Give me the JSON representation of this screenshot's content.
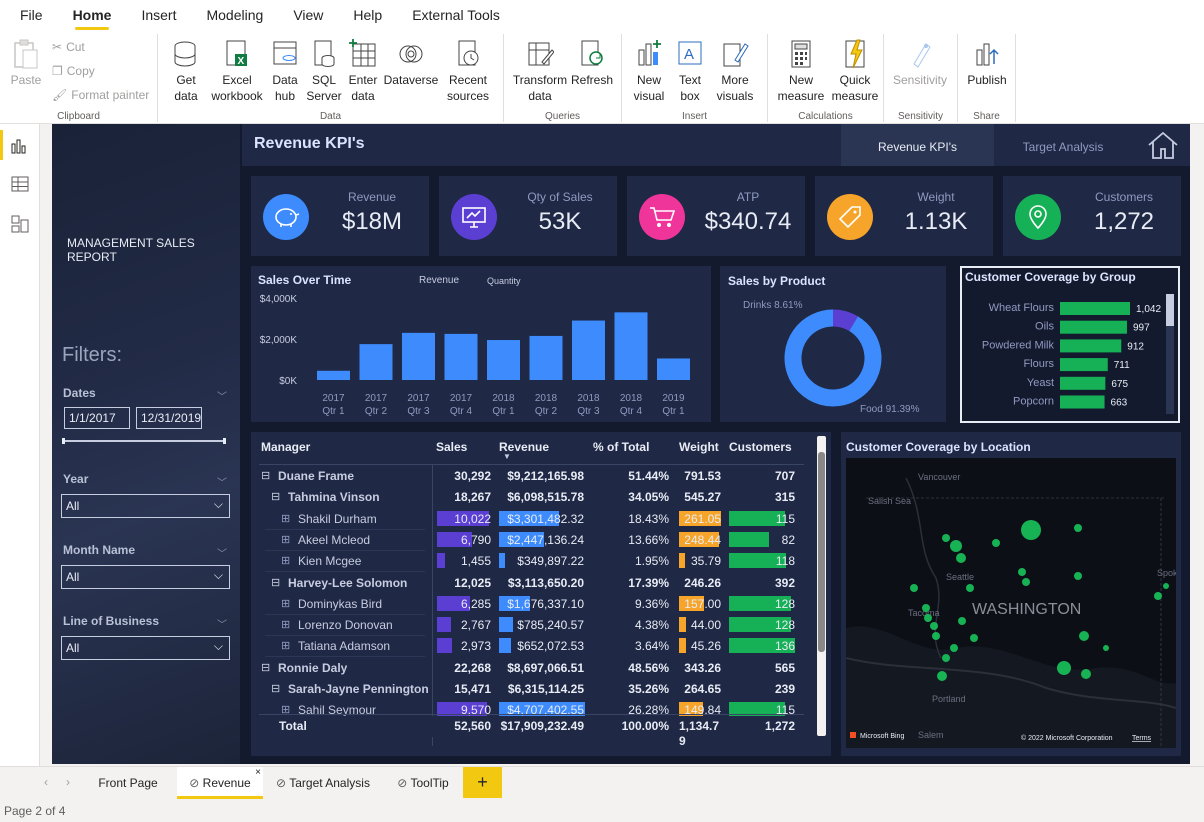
{
  "menu": {
    "items": [
      "File",
      "Home",
      "Insert",
      "Modeling",
      "View",
      "Help",
      "External Tools"
    ],
    "active": "Home"
  },
  "ribbon": {
    "clipboard": {
      "paste": "Paste",
      "cut": "Cut",
      "copy": "Copy",
      "format_painter": "Format painter",
      "label": "Clipboard"
    },
    "data": {
      "get_data": "Get data",
      "excel": "Excel workbook",
      "datahub": "Data hub",
      "sql": "SQL Server",
      "enter": "Enter data",
      "dataverse": "Dataverse",
      "recent": "Recent sources",
      "label": "Data"
    },
    "queries": {
      "transform": "Transform data",
      "refresh": "Refresh",
      "label": "Queries"
    },
    "insert": {
      "new_visual": "New visual",
      "text_box": "Text box",
      "more_visuals": "More visuals",
      "label": "Insert"
    },
    "calc": {
      "new_measure": "New measure",
      "quick_measure": "Quick measure",
      "label": "Calculations"
    },
    "sensitivity": {
      "btn": "Sensitivity",
      "label": "Sensitivity"
    },
    "share": {
      "publish": "Publish",
      "label": "Share"
    }
  },
  "report": {
    "title": "MANAGEMENT SALES REPORT",
    "heading": "Revenue KPI's",
    "nav": {
      "tab1": "Revenue KPI's",
      "tab2": "Target Analysis"
    },
    "filters": {
      "title": "Filters:",
      "dates_label": "Dates",
      "date_from": "1/1/2017",
      "date_to": "12/31/2019",
      "year_label": "Year",
      "year_value": "All",
      "month_label": "Month Name",
      "month_value": "All",
      "lob_label": "Line of Business",
      "lob_value": "All"
    },
    "kpis": [
      {
        "label": "Revenue",
        "value": "$18M",
        "color": "#3d8bfd",
        "icon": "piggy-bank-icon"
      },
      {
        "label": "Qty of Sales",
        "value": "53K",
        "color": "#5b3fd3",
        "icon": "presentation-chart-icon"
      },
      {
        "label": "ATP",
        "value": "$340.74",
        "color": "#f0359a",
        "icon": "shopping-cart-icon"
      },
      {
        "label": "Weight",
        "value": "1.13K",
        "color": "#f7a52a",
        "icon": "tag-icon"
      },
      {
        "label": "Customers",
        "value": "1,272",
        "color": "#16b156",
        "icon": "location-pin-icon"
      }
    ]
  },
  "chart_data": [
    {
      "type": "bar",
      "title": "Sales Over Time",
      "legend": [
        "Revenue",
        "Quantity"
      ],
      "categories": [
        "2017 Qtr 1",
        "2017 Qtr 2",
        "2017 Qtr 3",
        "2017 Qtr 4",
        "2018 Qtr 1",
        "2018 Qtr 2",
        "2018 Qtr 3",
        "2018 Qtr 4",
        "2019 Qtr 1"
      ],
      "series": [
        {
          "name": "Revenue",
          "values": [
            450,
            1750,
            2300,
            2250,
            1950,
            2150,
            2900,
            3300,
            1050
          ]
        }
      ],
      "yticks": [
        "$4,000K",
        "$2,000K",
        "$0K"
      ],
      "ylim": [
        0,
        4000
      ]
    },
    {
      "type": "pie",
      "title": "Sales by Product",
      "labels": [
        "Drinks",
        "Food"
      ],
      "values": [
        8.61,
        91.39
      ],
      "display": [
        "Drinks 8.61%",
        "Food 91.39%"
      ],
      "colors": [
        "#5b3fd3",
        "#3d8bfd"
      ]
    },
    {
      "type": "bar",
      "title": "Customer Coverage by Group",
      "categories": [
        "Wheat Flours",
        "Oils",
        "Powdered Milk",
        "Flours",
        "Yeast",
        "Popcorn"
      ],
      "values": [
        1042,
        997,
        912,
        711,
        675,
        663
      ],
      "display": [
        "1,042",
        "997",
        "912",
        "711",
        "675",
        "663"
      ]
    }
  ],
  "table": {
    "headers": [
      "Manager",
      "Sales",
      "Revenue",
      "% of Total",
      "Weight",
      "Customers"
    ],
    "rows": [
      {
        "level": 0,
        "name": "Duane Frame",
        "sales": "30,292",
        "revenue": "$9,212,165.98",
        "pct": "51.44%",
        "weight": "791.53",
        "cust": "707"
      },
      {
        "level": 1,
        "name": "Tahmina Vinson",
        "sales": "18,267",
        "revenue": "$6,098,515.78",
        "pct": "34.05%",
        "weight": "545.27",
        "cust": "315"
      },
      {
        "level": 2,
        "name": "Shakil Durham",
        "sales": "10,022",
        "revenue": "$3,301,482.32",
        "pct": "18.43%",
        "weight": "261.05",
        "cust": "115",
        "sv": 10022,
        "rv": 3301482,
        "wv": 261,
        "cv": 115
      },
      {
        "level": 2,
        "name": "Akeel Mcleod",
        "sales": "6,790",
        "revenue": "$2,447,136.24",
        "pct": "13.66%",
        "weight": "248.44",
        "cust": "82",
        "sv": 6790,
        "rv": 2447136,
        "wv": 248,
        "cv": 82
      },
      {
        "level": 2,
        "name": "Kien Mcgee",
        "sales": "1,455",
        "revenue": "$349,897.22",
        "pct": "1.95%",
        "weight": "35.79",
        "cust": "118",
        "sv": 1455,
        "rv": 349897,
        "wv": 35.79,
        "cv": 118
      },
      {
        "level": 1,
        "name": "Harvey-Lee Solomon",
        "sales": "12,025",
        "revenue": "$3,113,650.20",
        "pct": "17.39%",
        "weight": "246.26",
        "cust": "392"
      },
      {
        "level": 2,
        "name": "Dominykas Bird",
        "sales": "6,285",
        "revenue": "$1,676,337.10",
        "pct": "9.36%",
        "weight": "157.00",
        "cust": "128",
        "sv": 6285,
        "rv": 1676337,
        "wv": 157,
        "cv": 128
      },
      {
        "level": 2,
        "name": "Lorenzo Donovan",
        "sales": "2,767",
        "revenue": "$785,240.57",
        "pct": "4.38%",
        "weight": "44.00",
        "cust": "128",
        "sv": 2767,
        "rv": 785240,
        "wv": 44,
        "cv": 128
      },
      {
        "level": 2,
        "name": "Tatiana Adamson",
        "sales": "2,973",
        "revenue": "$652,072.53",
        "pct": "3.64%",
        "weight": "45.26",
        "cust": "136",
        "sv": 2973,
        "rv": 652072,
        "wv": 45.26,
        "cv": 136
      },
      {
        "level": 0,
        "name": "Ronnie Daly",
        "sales": "22,268",
        "revenue": "$8,697,066.51",
        "pct": "48.56%",
        "weight": "343.26",
        "cust": "565"
      },
      {
        "level": 1,
        "name": "Sarah-Jayne Pennington",
        "sales": "15,471",
        "revenue": "$6,315,114.25",
        "pct": "35.26%",
        "weight": "264.65",
        "cust": "239"
      },
      {
        "level": 2,
        "name": "Sahil Seymour",
        "sales": "9,570",
        "revenue": "$4,707,402.55",
        "pct": "26.28%",
        "weight": "149.84",
        "cust": "115",
        "sv": 9570,
        "rv": 4707402,
        "wv": 149.84,
        "cv": 115
      }
    ],
    "total": {
      "name": "Total",
      "sales": "52,560",
      "revenue": "$17,909,232.49",
      "pct": "100.00%",
      "weight": "1,134.79",
      "cust": "1,272"
    }
  },
  "map": {
    "title": "Customer Coverage by Location",
    "state": "WASHINGTON",
    "places": [
      "Vancouver",
      "Salish Sea",
      "Seattle",
      "Tacoma",
      "Portland",
      "Salem",
      "Spokane"
    ],
    "bing": "Microsoft Bing",
    "copyright": "© 2022 Microsoft Corporation",
    "terms": "Terms"
  },
  "pages": {
    "tabs": [
      "Front Page",
      "Revenue",
      "Target Analysis",
      "ToolTip"
    ],
    "active": "Revenue",
    "status": "Page 2 of 4"
  }
}
